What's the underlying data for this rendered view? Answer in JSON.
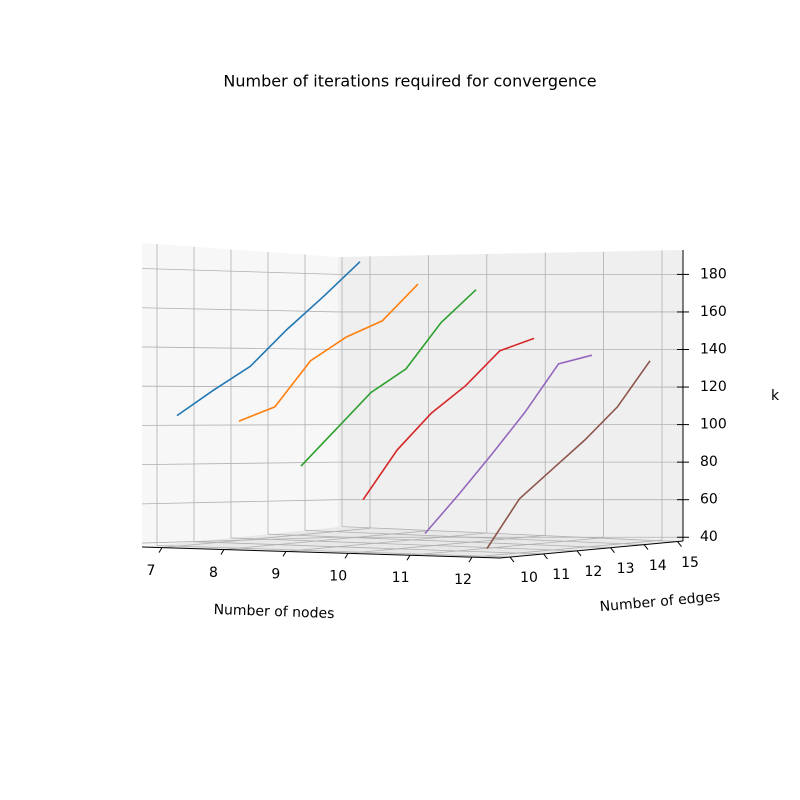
{
  "chart_data": {
    "type": "line3d",
    "title": "Number of iterations required for convergence",
    "xlabel": "Number of nodes",
    "ylabel": "Number of edges",
    "zlabel": "k",
    "x": [
      7,
      8,
      9,
      10,
      11,
      12
    ],
    "y": [
      10,
      11,
      12,
      13,
      14,
      15
    ],
    "xticks": [
      7,
      8,
      9,
      10,
      11,
      12
    ],
    "yticks": [
      10,
      11,
      12,
      13,
      14,
      15
    ],
    "zticks": [
      40,
      60,
      80,
      100,
      120,
      140,
      160,
      180
    ],
    "zlim": [
      38,
      193
    ],
    "grid": true,
    "series": [
      {
        "color": "#1f77b4",
        "values": [
          108,
          120,
          131,
          149,
          165,
          182
        ]
      },
      {
        "color": "#ff7f0e",
        "values": [
          106,
          112,
          135,
          146,
          153,
          171
        ]
      },
      {
        "color": "#2ca02c",
        "values": [
          83,
          101,
          119,
          130,
          153,
          169
        ]
      },
      {
        "color": "#d62728",
        "values": [
          66,
          91,
          109,
          122,
          139,
          144
        ]
      },
      {
        "color": "#9467bd",
        "values": [
          49,
          68,
          88,
          109,
          133,
          136
        ]
      },
      {
        "color": "#8c564b",
        "values": [
          42,
          67,
          81,
          95,
          111,
          134
        ]
      }
    ]
  }
}
